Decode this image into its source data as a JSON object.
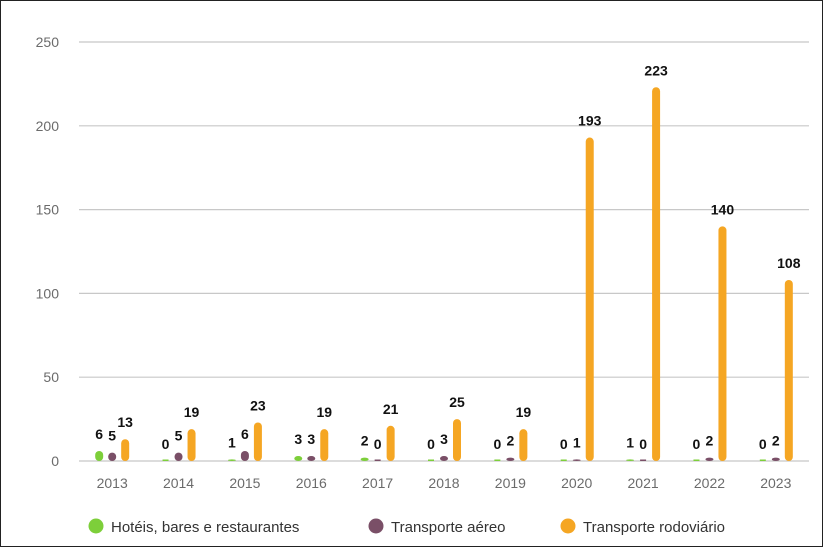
{
  "chart_data": {
    "type": "bar",
    "categories": [
      "2013",
      "2014",
      "2015",
      "2016",
      "2017",
      "2018",
      "2019",
      "2020",
      "2021",
      "2022",
      "2023"
    ],
    "series": [
      {
        "name": "Hotéis, bares e restaurantes",
        "color": "#7dcf3a",
        "values": [
          6,
          0,
          1,
          3,
          2,
          0,
          0,
          0,
          1,
          0,
          0
        ]
      },
      {
        "name": "Transporte aéreo",
        "color": "#7a4f67",
        "values": [
          5,
          5,
          6,
          3,
          0,
          3,
          2,
          1,
          0,
          2,
          2
        ]
      },
      {
        "name": "Transporte rodoviário",
        "color": "#f5a623",
        "values": [
          13,
          19,
          23,
          19,
          21,
          25,
          19,
          193,
          223,
          140,
          108
        ]
      }
    ],
    "ylim": [
      0,
      250
    ],
    "yticks": [
      "0",
      "50",
      "100",
      "150",
      "200",
      "250"
    ],
    "grid": true,
    "legend": "bottom"
  }
}
